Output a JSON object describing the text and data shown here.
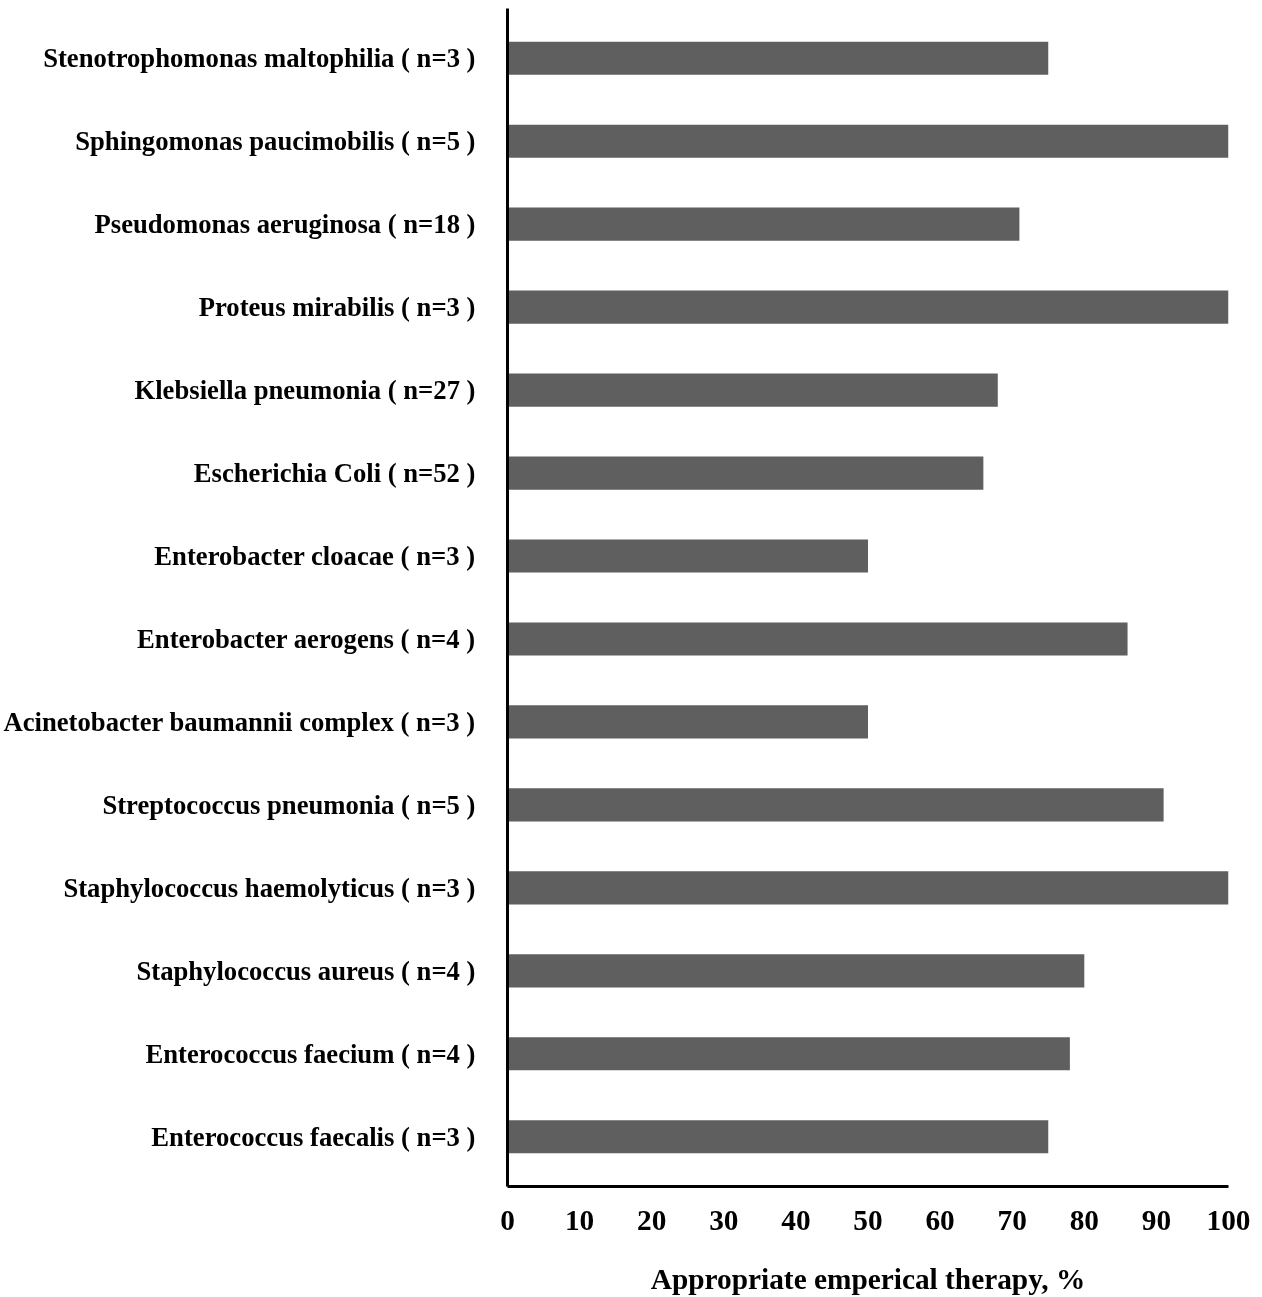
{
  "chart_data": {
    "type": "bar",
    "orientation": "horizontal",
    "xlabel": "Appropriate emperical therapy, %",
    "categories": [
      "Stenotrophomonas maltophilia ( n=3 )",
      "Sphingomonas paucimobilis ( n=5 )",
      "Pseudomonas aeruginosa ( n=18 )",
      "Proteus mirabilis ( n=3 )",
      "Klebsiella pneumonia ( n=27 )",
      "Escherichia Coli ( n=52 )",
      "Enterobacter cloacae ( n=3 )",
      "Enterobacter aerogens ( n=4 )",
      "Acinetobacter baumannii complex ( n=3 )",
      "Streptococcus pneumonia ( n=5 )",
      "Staphylococcus haemolyticus ( n=3 )",
      "Staphylococcus aureus ( n=4 )",
      "Enterococcus faecium ( n=4 )",
      "Enterococcus faecalis ( n=3 )"
    ],
    "values": [
      75,
      100,
      71,
      100,
      68,
      66,
      50,
      86,
      50,
      91,
      100,
      80,
      78,
      75
    ],
    "color": "#5f5f5f",
    "xlim": [
      0,
      100
    ],
    "xticks": [
      0,
      10,
      20,
      30,
      40,
      50,
      60,
      70,
      80,
      90,
      100
    ],
    "grid": false
  }
}
